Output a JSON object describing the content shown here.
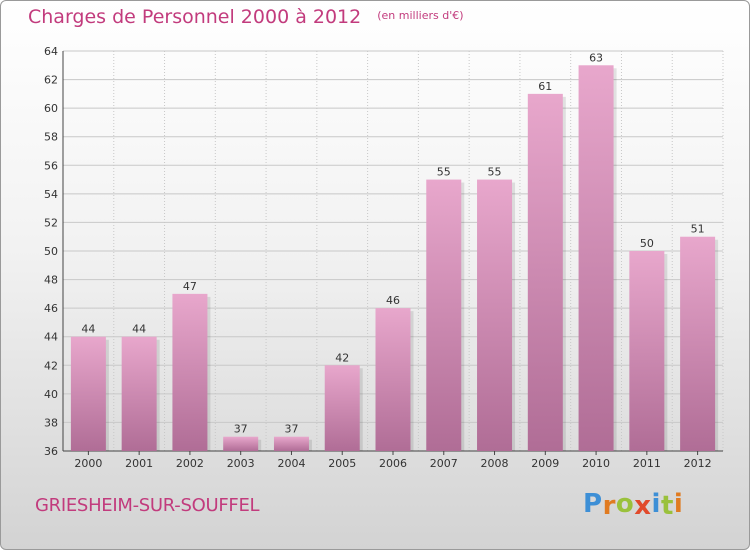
{
  "header": {
    "title": "Charges de Personnel 2000 à 2012",
    "subtitle": "(en milliers d'€)"
  },
  "footer": {
    "town": "GRIESHEIM-SUR-SOUFFEL",
    "brand": "Proxiti",
    "brand_letters": [
      {
        "ch": "P",
        "color": "#3d8fd6"
      },
      {
        "ch": "r",
        "color": "#e07b21"
      },
      {
        "ch": "o",
        "color": "#9ac13c"
      },
      {
        "ch": "x",
        "color": "#e14a2b"
      },
      {
        "ch": "i",
        "color": "#3d8fd6"
      },
      {
        "ch": "t",
        "color": "#9ac13c"
      },
      {
        "ch": "i",
        "color": "#e07b21"
      }
    ]
  },
  "colors": {
    "title": "#c23b7d",
    "bar_top": "#e8a7cc",
    "bar_bottom": "#b06d96",
    "grid": "#c8c8c8"
  },
  "chart_data": {
    "type": "bar",
    "title": "Charges de Personnel 2000 à 2012",
    "subtitle": "(en milliers d'€)",
    "categories": [
      "2000",
      "2001",
      "2002",
      "2003",
      "2004",
      "2005",
      "2006",
      "2007",
      "2008",
      "2009",
      "2010",
      "2011",
      "2012"
    ],
    "values": [
      44,
      44,
      47,
      37,
      37,
      42,
      46,
      55,
      55,
      61,
      63,
      50,
      51
    ],
    "ylim": [
      36,
      64
    ],
    "yticks": [
      36,
      38,
      40,
      42,
      44,
      46,
      48,
      50,
      52,
      54,
      56,
      58,
      60,
      62,
      64
    ],
    "grid": true,
    "data_labels": true
  }
}
